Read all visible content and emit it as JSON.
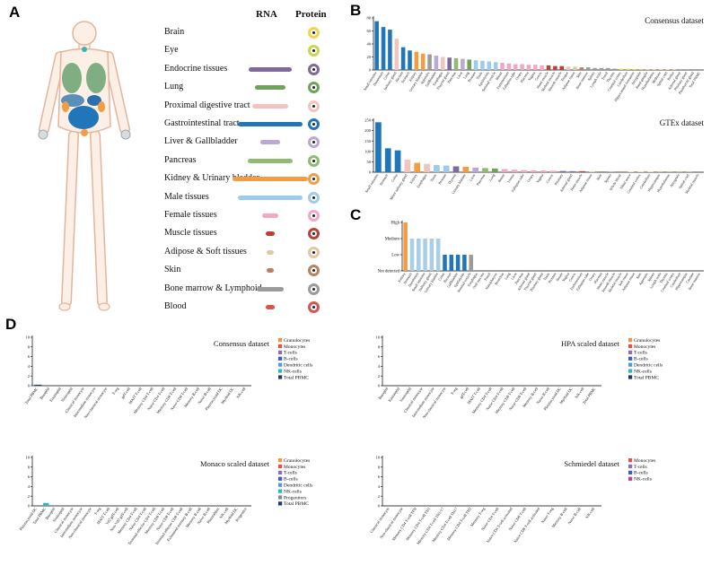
{
  "figure": {
    "panel_a_label": "A",
    "panel_b_label": "B",
    "panel_c_label": "C",
    "panel_d_label": "D"
  },
  "panelA": {
    "rna_header": "RNA",
    "protein_header": "Protein",
    "tissues": [
      {
        "name": "Brain",
        "color": "#F2D450",
        "rna": 0
      },
      {
        "name": "Eye",
        "color": "#C9D64F",
        "rna": 0
      },
      {
        "name": "Endocrine tissues",
        "color": "#7F6A9C",
        "rna": 48
      },
      {
        "name": "Lung",
        "color": "#6FA35C",
        "rna": 34
      },
      {
        "name": "Proximal digestive tract",
        "color": "#F2C4BE",
        "rna": 40
      },
      {
        "name": "Gastrointestinal tract",
        "color": "#2176B9",
        "rna": 72
      },
      {
        "name": "Liver & Gallbladder",
        "color": "#BCA9D1",
        "rna": 22
      },
      {
        "name": "Pancreas",
        "color": "#8FBC6F",
        "rna": 50
      },
      {
        "name": "Kidney & Urinary bladder",
        "color": "#F59C42",
        "rna": 84
      },
      {
        "name": "Male tissues",
        "color": "#9DCBE9",
        "rna": 72
      },
      {
        "name": "Female tissues",
        "color": "#F1A8C6",
        "rna": 18
      },
      {
        "name": "Muscle tissues",
        "color": "#B8413A",
        "rna": 10
      },
      {
        "name": "Adipose & Soft tissues",
        "color": "#E2C9A5",
        "rna": 8
      },
      {
        "name": "Skin",
        "color": "#B9825E",
        "rna": 8
      },
      {
        "name": "Bone marrow & Lymphoid",
        "color": "#9B9B9B",
        "rna": 30
      },
      {
        "name": "Blood",
        "color": "#D9534F",
        "rna": 10
      }
    ]
  },
  "chart_data": [
    {
      "id": "consensus-tissue",
      "type": "bar",
      "title": "Consensus dataset",
      "ylim": [
        0,
        80
      ],
      "yticks": [
        0,
        20,
        40,
        60,
        80
      ],
      "categories": [
        "Small intestine",
        "Duodenum",
        "Colon",
        "Salivary gland",
        "Rectum",
        "Stomach",
        "Kidney",
        "Urinary bladder",
        "Appendix",
        "Gallbladder",
        "Esophagus",
        "Thyroid gland",
        "Pancreas",
        "Liver",
        "Lung",
        "Prostate",
        "Testis",
        "Epididymis",
        "Seminal vesicle",
        "Breast",
        "Endometrium",
        "Fallopian tube",
        "Ovary",
        "Placenta",
        "Vagina",
        "Cervix",
        "Heart muscle",
        "Skeletal muscle",
        "Smooth muscle",
        "Tongue",
        "Adipose tissue",
        "Skin",
        "Bone marrow",
        "Spleen",
        "Lymph node",
        "Tonsil",
        "Thymus",
        "Cerebral cortex",
        "Cerebellum",
        "Hippocampal formation",
        "Amygdala",
        "Basal ganglia",
        "Hypothalamus",
        "Midbrain",
        "Spinal cord",
        "Retina",
        "Adrenal gland",
        "Pituitary gland",
        "Parathyroid gland",
        "Total PBMC"
      ],
      "values": [
        75,
        66,
        62,
        48,
        35,
        30,
        28,
        25,
        24,
        22,
        20,
        19,
        18,
        17,
        16,
        15,
        14,
        13,
        12,
        11,
        10,
        9,
        9,
        8,
        8,
        7,
        7,
        6,
        6,
        5,
        5,
        4,
        4,
        3,
        3,
        3,
        2,
        2,
        2,
        1.5,
        1.5,
        1,
        1,
        1,
        0.8,
        0.8,
        0.5,
        0.5,
        0.4,
        0.3
      ],
      "colors": [
        "#2176B9",
        "#2176B9",
        "#2176B9",
        "#F2C4BE",
        "#2176B9",
        "#2176B9",
        "#F59C42",
        "#F59C42",
        "#9B9B9B",
        "#BCA9D1",
        "#F2C4BE",
        "#7F6A9C",
        "#8FBC6F",
        "#BCA9D1",
        "#6FA35C",
        "#9DCBE9",
        "#9DCBE9",
        "#9DCBE9",
        "#9DCBE9",
        "#F1A8C6",
        "#F1A8C6",
        "#F1A8C6",
        "#F1A8C6",
        "#F1A8C6",
        "#F1A8C6",
        "#F1A8C6",
        "#B8413A",
        "#B8413A",
        "#B8413A",
        "#F2C4BE",
        "#E2C9A5",
        "#B9825E",
        "#9B9B9B",
        "#9B9B9B",
        "#9B9B9B",
        "#9B9B9B",
        "#9B9B9B",
        "#F2D450",
        "#F2D450",
        "#F2D450",
        "#F2D450",
        "#F2D450",
        "#F2D450",
        "#F2D450",
        "#F2D450",
        "#C9D64F",
        "#7F6A9C",
        "#7F6A9C",
        "#7F6A9C",
        "#D9534F"
      ]
    },
    {
      "id": "gtex-tissue",
      "type": "bar",
      "title": "GTEx dataset",
      "ylim": [
        0,
        250
      ],
      "yticks": [
        0,
        50,
        100,
        150,
        200,
        250
      ],
      "categories": [
        "Small intestine",
        "Stomach",
        "Colon",
        "Minor salivary gland",
        "Kidney",
        "Esophagus",
        "Testis",
        "Prostate",
        "Thyroid",
        "Urinary bladder",
        "Liver",
        "Pancreas",
        "Lung",
        "Breast",
        "Uterus",
        "Fallopian tube",
        "Ovary",
        "Vagina",
        "Cervix",
        "Pituitary",
        "Adrenal gland",
        "Heart muscle",
        "Adipose tissue",
        "Skin",
        "Spleen",
        "Whole blood",
        "Tibial nerve",
        "Cerebral cortex",
        "Cerebellum",
        "Hippocampus",
        "Hypothalamus",
        "Amygdala",
        "Spinal cord",
        "Skeletal muscle"
      ],
      "values": [
        240,
        115,
        105,
        60,
        45,
        40,
        35,
        32,
        28,
        26,
        22,
        20,
        18,
        15,
        12,
        10,
        9,
        8,
        7,
        6,
        5,
        5,
        4,
        4,
        3,
        3,
        2,
        2,
        2,
        1,
        1,
        1,
        1,
        0.5
      ],
      "colors": [
        "#2176B9",
        "#2176B9",
        "#2176B9",
        "#F2C4BE",
        "#F59C42",
        "#F2C4BE",
        "#9DCBE9",
        "#9DCBE9",
        "#7F6A9C",
        "#F59C42",
        "#BCA9D1",
        "#8FBC6F",
        "#6FA35C",
        "#F1A8C6",
        "#F1A8C6",
        "#F1A8C6",
        "#F1A8C6",
        "#F1A8C6",
        "#F1A8C6",
        "#7F6A9C",
        "#7F6A9C",
        "#B8413A",
        "#E2C9A5",
        "#B9825E",
        "#9B9B9B",
        "#D9534F",
        "#F2D450",
        "#F2D450",
        "#F2D450",
        "#F2D450",
        "#F2D450",
        "#F2D450",
        "#F2D450",
        "#B8413A"
      ]
    },
    {
      "id": "protein-level",
      "type": "bar",
      "title": "",
      "ylim": [
        0,
        3
      ],
      "ytick_labels": [
        "Not detected",
        "Low",
        "Medium",
        "High"
      ],
      "categories": [
        "Kidney",
        "Stomach",
        "Duodenum",
        "Small intestine",
        "Salivary gland",
        "Urinary bladder",
        "Colon",
        "Rectum",
        "Gallbladder",
        "Epididymis",
        "Seminal vesicle",
        "Esophagus",
        "Oral mucosa",
        "Tonsil",
        "Nasopharynx",
        "Bronchus",
        "Lung",
        "Liver",
        "Pancreas",
        "Adrenal gland",
        "Thyroid gland",
        "Pituitary gland",
        "Testis",
        "Prostate",
        "Breast",
        "Vagina",
        "Cervix",
        "Endometrium",
        "Fallopian tube",
        "Ovary",
        "Placenta",
        "Heart muscle",
        "Smooth muscle",
        "Skeletal muscle",
        "Soft tissue",
        "Adipose tissue",
        "Skin",
        "Appendix",
        "Spleen",
        "Lymph node",
        "Thymus",
        "Cerebral cortex",
        "Cerebellum",
        "Hippocampus",
        "Caudate",
        "Bone marrow"
      ],
      "values": [
        3,
        2,
        2,
        2,
        2,
        2,
        1,
        1,
        1,
        1,
        1,
        0,
        0,
        0,
        0,
        0,
        0,
        0,
        0,
        0,
        0,
        0,
        0,
        0,
        0,
        0,
        0,
        0,
        0,
        0,
        0,
        0,
        0,
        0,
        0,
        0,
        0,
        0,
        0,
        0,
        0,
        0,
        0,
        0,
        0,
        0
      ],
      "colors": [
        "#F59C42",
        "#A9CFE8",
        "#A9CFE8",
        "#A9CFE8",
        "#A9CFE8",
        "#A9CFE8",
        "#2176B9",
        "#2176B9",
        "#2176B9",
        "#2176B9",
        "#9B9B9B"
      ]
    },
    {
      "id": "consensus-immune",
      "type": "bar",
      "title": "Consensus dataset",
      "ylim": [
        0,
        10
      ],
      "yticks": [
        0,
        2,
        4,
        6,
        8,
        10
      ],
      "categories": [
        "Total PBMC",
        "Basophil",
        "Eosinophil",
        "Neutrophil",
        "Classical monocyte",
        "Intermediate monocyte",
        "Non-classical monocyte",
        "T-reg",
        "gdT-cell",
        "MAIT T-cell",
        "Memory CD4 T-cell",
        "Naive CD4 T-cell",
        "Memory CD8 T-cell",
        "Naive CD8 T-cell",
        "Memory B-cell",
        "Naive B-cell",
        "Plasmacytoid DC",
        "Myeloid DC",
        "NK-cell"
      ],
      "values": [
        0.2,
        0,
        0,
        0,
        0,
        0,
        0,
        0,
        0,
        0,
        0,
        0,
        0,
        0,
        0,
        0,
        0,
        0,
        0
      ],
      "colors": [
        "#1F3864",
        "#F5923E",
        "#F5923E",
        "#F5923E",
        "#E25048",
        "#E25048",
        "#E25048",
        "#8C6BB8",
        "#8C6BB8",
        "#8C6BB8",
        "#8C6BB8",
        "#8C6BB8",
        "#8C6BB8",
        "#8C6BB8",
        "#3D5BC1",
        "#3D5BC1",
        "#4C9BD4",
        "#4C9BD4",
        "#35B6B0"
      ],
      "legend": [
        {
          "label": "Granulocytes",
          "color": "#F5923E"
        },
        {
          "label": "Monocytes",
          "color": "#E25048"
        },
        {
          "label": "T-cells",
          "color": "#8C6BB8"
        },
        {
          "label": "B-cells",
          "color": "#3D5BC1"
        },
        {
          "label": "Dendritic cells",
          "color": "#4C9BD4"
        },
        {
          "label": "NK-cells",
          "color": "#35B6B0"
        },
        {
          "label": "Total PBMC",
          "color": "#1F3864"
        }
      ]
    },
    {
      "id": "hpa-immune",
      "type": "bar",
      "title": "HPA scaled dataset",
      "ylim": [
        0,
        10
      ],
      "yticks": [
        0,
        2,
        4,
        6,
        8,
        10
      ],
      "categories": [
        "Basophil",
        "Eosinophil",
        "Neutrophil",
        "Classical monocyte",
        "Intermediate monocyte",
        "Non-classical monocyte",
        "T-reg",
        "gdT-cell",
        "MAIT T-cell",
        "Memory CD4 T-cell",
        "Naive CD4 T-cell",
        "Memory CD8 T-cell",
        "Naive CD8 T-cell",
        "Memory B-cell",
        "Naive B-cell",
        "Plasmacytoid DC",
        "Myeloid DC",
        "NK-cell",
        "Total PBMC"
      ],
      "values": [
        0,
        0,
        0,
        0,
        0,
        0,
        0,
        0,
        0,
        0,
        0,
        0,
        0,
        0,
        0,
        0,
        0,
        0,
        0
      ],
      "colors": [
        "#F5923E",
        "#F5923E",
        "#F5923E",
        "#E25048",
        "#E25048",
        "#E25048",
        "#8C6BB8",
        "#8C6BB8",
        "#8C6BB8",
        "#8C6BB8",
        "#8C6BB8",
        "#8C6BB8",
        "#8C6BB8",
        "#3D5BC1",
        "#3D5BC1",
        "#4C9BD4",
        "#4C9BD4",
        "#35B6B0",
        "#1F3864"
      ],
      "legend": [
        {
          "label": "Granulocytes",
          "color": "#F5923E"
        },
        {
          "label": "Monocytes",
          "color": "#E25048"
        },
        {
          "label": "T-cells",
          "color": "#8C6BB8"
        },
        {
          "label": "B-cells",
          "color": "#3D5BC1"
        },
        {
          "label": "Dendritic cells",
          "color": "#4C9BD4"
        },
        {
          "label": "NK-cells",
          "color": "#35B6B0"
        },
        {
          "label": "Total PBMC",
          "color": "#1F3864"
        }
      ]
    },
    {
      "id": "monaco-immune",
      "type": "bar",
      "title": "Monaco scaled dataset",
      "ylim": [
        0,
        10
      ],
      "yticks": [
        0,
        2,
        4,
        6,
        8,
        10
      ],
      "categories": [
        "Plasmacytoid DC",
        "Total PBMC",
        "Basophil",
        "Neutrophil",
        "Classical monocyte",
        "Intermediate monocyte",
        "Non-classical monocyte",
        "T-reg",
        "MAIT T-cell",
        "Vd2 gdT-cell",
        "Non-Vd2 gdT-cell",
        "Memory CD4 T-cell",
        "Naive CD4 T-cell",
        "Terminal effector CD4 T-cell",
        "Memory CD8 T-cell",
        "Naive CD8 T-cell",
        "Terminal effector CD8 T-cell",
        "Exhausted memory B-cell",
        "Memory B-cell",
        "Naive B-cell",
        "Plasmablast",
        "NK-cell",
        "Myeloid DC",
        "Progenitor"
      ],
      "values": [
        0,
        0.6,
        0,
        0,
        0,
        0,
        0,
        0,
        0,
        0,
        0,
        0,
        0,
        0,
        0,
        0,
        0,
        0,
        0,
        0,
        0,
        0,
        0,
        0
      ],
      "colors": [
        "#4C9BD4",
        "#35B6B0",
        "#F5923E",
        "#F5923E",
        "#E25048",
        "#E25048",
        "#E25048",
        "#8C6BB8",
        "#8C6BB8",
        "#8C6BB8",
        "#8C6BB8",
        "#8C6BB8",
        "#8C6BB8",
        "#8C6BB8",
        "#8C6BB8",
        "#8C6BB8",
        "#8C6BB8",
        "#3D5BC1",
        "#3D5BC1",
        "#3D5BC1",
        "#3D5BC1",
        "#35B6B0",
        "#4C9BD4",
        "#8A8A8A"
      ],
      "legend": [
        {
          "label": "Granulocytes",
          "color": "#F5923E"
        },
        {
          "label": "Monocytes",
          "color": "#E25048"
        },
        {
          "label": "T-cells",
          "color": "#8C6BB8"
        },
        {
          "label": "B-cells",
          "color": "#3D5BC1"
        },
        {
          "label": "Dendritic cells",
          "color": "#4C9BD4"
        },
        {
          "label": "NK-cells",
          "color": "#35B6B0"
        },
        {
          "label": "Progenitors",
          "color": "#8A8A8A"
        },
        {
          "label": "Total PBMC",
          "color": "#1F3864"
        }
      ]
    },
    {
      "id": "schmiedel-immune",
      "type": "bar",
      "title": "Schmiedel dataset",
      "ylim": [
        0,
        10
      ],
      "yticks": [
        0,
        2,
        4,
        6,
        8,
        10
      ],
      "categories": [
        "Classical monocyte",
        "Non-classical monocyte",
        "Memory CD4 T-cell TFH",
        "Memory CD4 T-cell TH1",
        "Memory CD4 T-cell TH1/17",
        "Memory CD4 T-cell TH17",
        "Memory CD4 T-cell TH2",
        "Memory T-reg",
        "Naive CD4 T-cell",
        "Naive CD4 T-cell activated",
        "Naive CD8 T-cell",
        "Naive CD8 T-cell activated",
        "Naive T-reg",
        "Memory B-cell",
        "Naive B-cell",
        "NK-cell"
      ],
      "values": [
        0,
        0,
        0,
        0,
        0,
        0,
        0,
        0,
        0,
        0,
        0,
        0,
        0,
        0,
        0,
        0
      ],
      "colors": [
        "#E25048",
        "#E25048",
        "#8C6BB8",
        "#8C6BB8",
        "#8C6BB8",
        "#8C6BB8",
        "#8C6BB8",
        "#8C6BB8",
        "#8C6BB8",
        "#8C6BB8",
        "#8C6BB8",
        "#8C6BB8",
        "#8C6BB8",
        "#3D5BC1",
        "#3D5BC1",
        "#C2399F"
      ],
      "legend": [
        {
          "label": "Monocytes",
          "color": "#E25048"
        },
        {
          "label": "T-cells",
          "color": "#8C6BB8"
        },
        {
          "label": "B-cells",
          "color": "#3D5BC1"
        },
        {
          "label": "NK-cells",
          "color": "#C2399F"
        }
      ]
    }
  ]
}
